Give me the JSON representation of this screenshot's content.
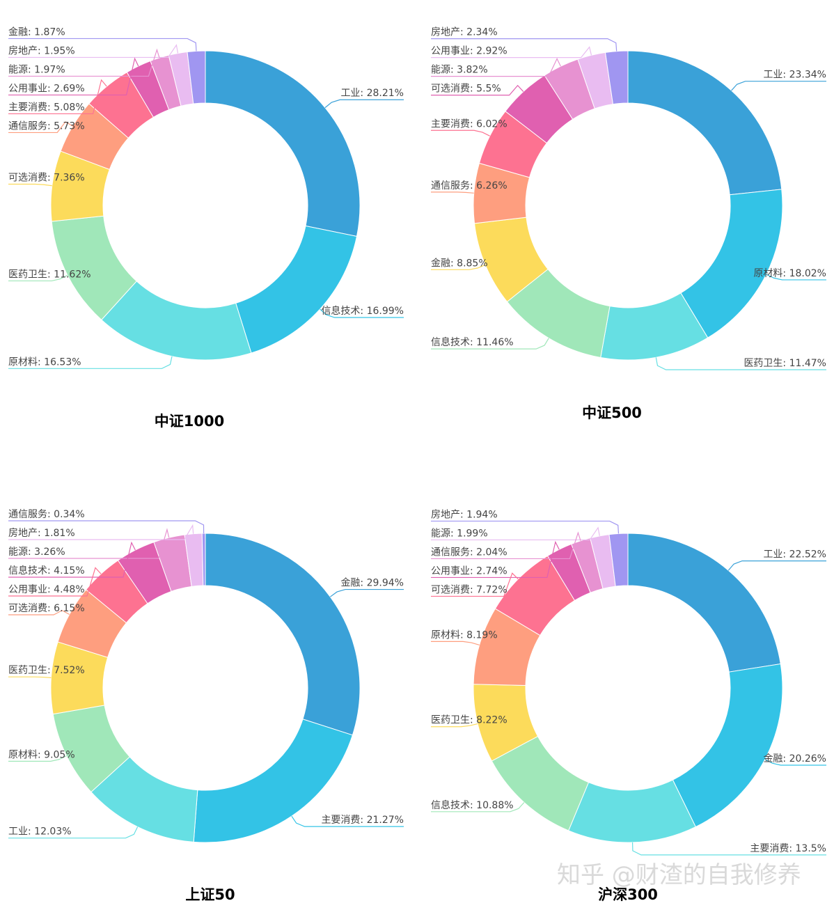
{
  "colors": [
    "#3aa1d8",
    "#33c3e6",
    "#66dfe3",
    "#a0e7b9",
    "#fcdb5b",
    "#fe9e7f",
    "#fd7291",
    "#e060b0",
    "#e792d1",
    "#e9bcf1",
    "#a096f1"
  ],
  "watermark": "知乎 @财渣的自我修养",
  "chart_data": [
    {
      "type": "pie",
      "title": "中证1000",
      "slices": [
        {
          "label": "工业",
          "value": 28.21,
          "text": "工业: 28.21%"
        },
        {
          "label": "信息技术",
          "value": 16.99,
          "text": "信息技术: 16.99%"
        },
        {
          "label": "原材料",
          "value": 16.53,
          "text": "原材料: 16.53%"
        },
        {
          "label": "医药卫生",
          "value": 11.62,
          "text": "医药卫生: 11.62%"
        },
        {
          "label": "可选消费",
          "value": 7.36,
          "text": "可选消费: 7.36%"
        },
        {
          "label": "通信服务",
          "value": 5.73,
          "text": "通信服务: 5.73%"
        },
        {
          "label": "主要消费",
          "value": 5.08,
          "text": "主要消费: 5.08%"
        },
        {
          "label": "公用事业",
          "value": 2.69,
          "text": "公用事业: 2.69%"
        },
        {
          "label": "能源",
          "value": 1.97,
          "text": "能源: 1.97%"
        },
        {
          "label": "房地产",
          "value": 1.95,
          "text": "房地产: 1.95%"
        },
        {
          "label": "金融",
          "value": 1.87,
          "text": "金融: 1.87%"
        }
      ]
    },
    {
      "type": "pie",
      "title": "中证500",
      "slices": [
        {
          "label": "工业",
          "value": 23.34,
          "text": "工业: 23.34%"
        },
        {
          "label": "原材料",
          "value": 18.02,
          "text": "原材料: 18.02%"
        },
        {
          "label": "医药卫生",
          "value": 11.47,
          "text": "医药卫生: 11.47%"
        },
        {
          "label": "信息技术",
          "value": 11.46,
          "text": "信息技术: 11.46%"
        },
        {
          "label": "金融",
          "value": 8.85,
          "text": "金融: 8.85%"
        },
        {
          "label": "通信服务",
          "value": 6.26,
          "text": "通信服务: 6.26%"
        },
        {
          "label": "主要消费",
          "value": 6.02,
          "text": "主要消费: 6.02%"
        },
        {
          "label": "可选消费",
          "value": 5.5,
          "text": "可选消费: 5.5%"
        },
        {
          "label": "能源",
          "value": 3.82,
          "text": "能源: 3.82%"
        },
        {
          "label": "公用事业",
          "value": 2.92,
          "text": "公用事业: 2.92%"
        },
        {
          "label": "房地产",
          "value": 2.34,
          "text": "房地产: 2.34%"
        }
      ]
    },
    {
      "type": "pie",
      "title": "上证50",
      "slices": [
        {
          "label": "金融",
          "value": 29.94,
          "text": "金融: 29.94%"
        },
        {
          "label": "主要消费",
          "value": 21.27,
          "text": "主要消费: 21.27%"
        },
        {
          "label": "工业",
          "value": 12.03,
          "text": "工业: 12.03%"
        },
        {
          "label": "原材料",
          "value": 9.05,
          "text": "原材料: 9.05%"
        },
        {
          "label": "医药卫生",
          "value": 7.52,
          "text": "医药卫生: 7.52%"
        },
        {
          "label": "可选消费",
          "value": 6.15,
          "text": "可选消费: 6.15%"
        },
        {
          "label": "公用事业",
          "value": 4.48,
          "text": "公用事业: 4.48%"
        },
        {
          "label": "信息技术",
          "value": 4.15,
          "text": "信息技术: 4.15%"
        },
        {
          "label": "能源",
          "value": 3.26,
          "text": "能源: 3.26%"
        },
        {
          "label": "房地产",
          "value": 1.81,
          "text": "房地产: 1.81%"
        },
        {
          "label": "通信服务",
          "value": 0.34,
          "text": "通信服务: 0.34%"
        }
      ]
    },
    {
      "type": "pie",
      "title": "沪深300",
      "slices": [
        {
          "label": "工业",
          "value": 22.52,
          "text": "工业: 22.52%"
        },
        {
          "label": "金融",
          "value": 20.26,
          "text": "金融: 20.26%"
        },
        {
          "label": "主要消费",
          "value": 13.5,
          "text": "主要消费: 13.5%"
        },
        {
          "label": "信息技术",
          "value": 10.88,
          "text": "信息技术: 10.88%"
        },
        {
          "label": "医药卫生",
          "value": 8.22,
          "text": "医药卫生: 8.22%"
        },
        {
          "label": "原材料",
          "value": 8.19,
          "text": "原材料: 8.19%"
        },
        {
          "label": "可选消费",
          "value": 7.72,
          "text": "可选消费: 7.72%"
        },
        {
          "label": "公用事业",
          "value": 2.74,
          "text": "公用事业: 2.74%"
        },
        {
          "label": "通信服务",
          "value": 2.04,
          "text": "通信服务: 2.04%"
        },
        {
          "label": "能源",
          "value": 1.99,
          "text": "能源: 1.99%"
        },
        {
          "label": "房地产",
          "value": 1.94,
          "text": "房地产: 1.94%"
        }
      ]
    }
  ]
}
